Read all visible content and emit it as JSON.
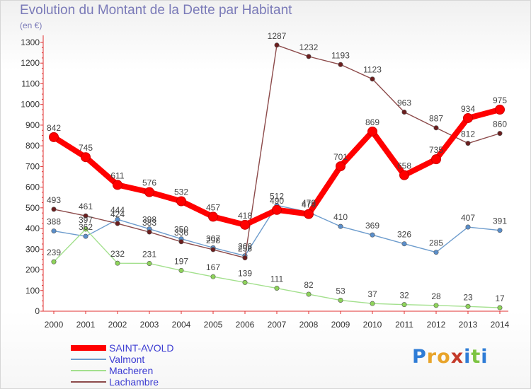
{
  "title": "Evolution du Montant de la Dette par Habitant",
  "unit_label": "(en €)",
  "logo": {
    "text": "Proxiti",
    "letters": [
      "P",
      "r",
      "o",
      "x",
      "i",
      "t",
      "i"
    ],
    "colors": [
      "#2e7cd6",
      "#e8a42a",
      "#e8a42a",
      "#c43a2a",
      "#2e7cd6",
      "#7cc442",
      "#2e7cd6"
    ]
  },
  "chart_data": {
    "type": "line",
    "title": "Evolution du Montant de la Dette par Habitant",
    "subtitle": "(en €)",
    "x": [
      "2000",
      "2001",
      "2002",
      "2003",
      "2004",
      "2005",
      "2006",
      "2007",
      "2008",
      "2009",
      "2010",
      "2011",
      "2012",
      "2013",
      "2014"
    ],
    "ylim": [
      0,
      1300
    ],
    "yticks": [
      0,
      100,
      200,
      300,
      400,
      500,
      600,
      700,
      800,
      900,
      1000,
      1100,
      1200,
      1300
    ],
    "grid": false,
    "legend_position": "bottom-left",
    "series": [
      {
        "name": "SAINT-AVOLD",
        "color": "#ff0000",
        "marker_color": "#ff0000",
        "emphasis": true,
        "values": [
          842,
          745,
          611,
          576,
          532,
          457,
          418,
          490,
          470,
          701,
          869,
          658,
          735,
          934,
          975
        ]
      },
      {
        "name": "Valmont",
        "color": "#6d9ccd",
        "marker_color": "#5b8fcb",
        "emphasis": false,
        "values": [
          388,
          362,
          444,
          398,
          350,
          307,
          268,
          512,
          479,
          410,
          369,
          326,
          285,
          407,
          391
        ]
      },
      {
        "name": "Macheren",
        "color": "#a3e08d",
        "marker_color": "#8ed45a",
        "emphasis": false,
        "values": [
          239,
          397,
          232,
          231,
          197,
          167,
          139,
          111,
          82,
          53,
          37,
          32,
          28,
          23,
          17
        ]
      },
      {
        "name": "Lachambre",
        "color": "#8c4a4a",
        "marker_color": "#6b1e1e",
        "emphasis": false,
        "values": [
          493,
          461,
          424,
          383,
          336,
          298,
          258,
          1287,
          1232,
          1193,
          1123,
          963,
          887,
          812,
          860
        ]
      }
    ]
  }
}
